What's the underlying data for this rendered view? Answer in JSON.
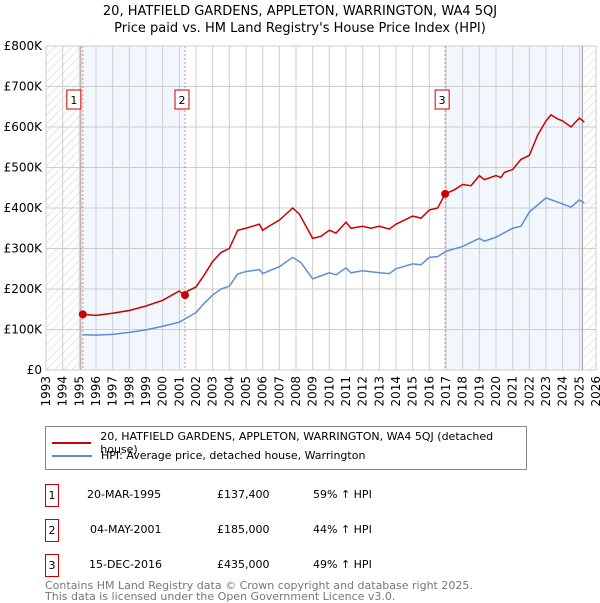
{
  "chart_data": {
    "type": "line",
    "title": "20, HATFIELD GARDENS, APPLETON, WARRINGTON, WA4 5QJ",
    "subtitle": "Price paid vs. HM Land Registry's House Price Index (HPI)",
    "xlim": [
      1993,
      2026
    ],
    "ylim": [
      0,
      800000
    ],
    "x_ticks": [
      "1993",
      "1994",
      "1995",
      "1996",
      "1997",
      "1998",
      "1999",
      "2000",
      "2001",
      "2002",
      "2003",
      "2004",
      "2005",
      "2006",
      "2007",
      "2008",
      "2009",
      "2010",
      "2011",
      "2012",
      "2013",
      "2014",
      "2015",
      "2016",
      "2017",
      "2018",
      "2019",
      "2020",
      "2021",
      "2022",
      "2023",
      "2024",
      "2025",
      "2026"
    ],
    "y_ticks": [
      {
        "v": 0,
        "label": "£0"
      },
      {
        "v": 100000,
        "label": "£100K"
      },
      {
        "v": 200000,
        "label": "£200K"
      },
      {
        "v": 300000,
        "label": "£300K"
      },
      {
        "v": 400000,
        "label": "£400K"
      },
      {
        "v": 500000,
        "label": "£500K"
      },
      {
        "v": 600000,
        "label": "£600K"
      },
      {
        "v": 700000,
        "label": "£700K"
      },
      {
        "v": 800000,
        "label": "£800K"
      }
    ],
    "grid": true,
    "series": [
      {
        "name": "20, HATFIELD GARDENS, APPLETON, WARRINGTON, WA4 5QJ (detached house)",
        "color": "#cc0000",
        "x": [
          1995.2,
          1996,
          1997,
          1998,
          1999,
          2000,
          2001,
          2001.3,
          2001.5,
          2002,
          2002.5,
          2003,
          2003.5,
          2004,
          2004.5,
          2005,
          2005.8,
          2006,
          2006.5,
          2007,
          2007.8,
          2008.2,
          2008.6,
          2009,
          2009.5,
          2010,
          2010.4,
          2011,
          2011.3,
          2012,
          2012.5,
          2013,
          2013.6,
          2014,
          2014.5,
          2015,
          2015.5,
          2016,
          2016.5,
          2016.95,
          2017.5,
          2018,
          2018.5,
          2019,
          2019.3,
          2020,
          2020.3,
          2020.5,
          2021,
          2021.5,
          2022,
          2022.5,
          2023,
          2023.3,
          2023.7,
          2024,
          2024.5,
          2025,
          2025.3
        ],
        "y": [
          137400,
          135000,
          140000,
          147000,
          158000,
          172000,
          195000,
          185000,
          195000,
          205000,
          235000,
          268000,
          290000,
          300000,
          345000,
          350000,
          360000,
          345000,
          358000,
          370000,
          400000,
          385000,
          355000,
          325000,
          330000,
          345000,
          338000,
          365000,
          350000,
          355000,
          350000,
          355000,
          348000,
          360000,
          370000,
          380000,
          375000,
          395000,
          400000,
          435000,
          445000,
          458000,
          455000,
          480000,
          470000,
          480000,
          475000,
          488000,
          495000,
          520000,
          530000,
          580000,
          615000,
          630000,
          620000,
          615000,
          600000,
          622000,
          612000
        ]
      },
      {
        "name": "HPI: Average price, detached house, Warrington",
        "color": "#5b8fd4",
        "x": [
          1995.2,
          1996,
          1997,
          1998,
          1999,
          2000,
          2001,
          2001.5,
          2002,
          2002.5,
          2003,
          2003.5,
          2004,
          2004.5,
          2005,
          2005.8,
          2006,
          2007,
          2007.8,
          2008.3,
          2009,
          2010,
          2010.4,
          2011,
          2011.3,
          2012,
          2013,
          2013.6,
          2014,
          2015,
          2015.5,
          2016,
          2016.5,
          2017,
          2018,
          2019,
          2019.3,
          2020,
          2021,
          2021.5,
          2022,
          2023,
          2024,
          2024.5,
          2025,
          2025.3
        ],
        "y": [
          87000,
          86000,
          88000,
          93000,
          99000,
          108000,
          118000,
          130000,
          142000,
          165000,
          185000,
          200000,
          207000,
          237000,
          243000,
          248000,
          238000,
          255000,
          278000,
          265000,
          225000,
          240000,
          235000,
          252000,
          240000,
          245000,
          240000,
          238000,
          250000,
          262000,
          260000,
          278000,
          280000,
          293000,
          305000,
          325000,
          318000,
          328000,
          350000,
          355000,
          390000,
          425000,
          410000,
          402000,
          420000,
          412000
        ]
      }
    ],
    "sales": [
      {
        "n": "1",
        "x": 1995.21,
        "price": 137400,
        "date": "20-MAR-1995",
        "price_label": "£137,400",
        "hpi": "59% ↑ HPI"
      },
      {
        "n": "2",
        "x": 2001.34,
        "price": 185000,
        "date": "04-MAY-2001",
        "price_label": "£185,000",
        "hpi": "44% ↑ HPI"
      },
      {
        "n": "3",
        "x": 2016.95,
        "price": 435000,
        "date": "15-DEC-2016",
        "price_label": "£435,000",
        "hpi": "49% ↑ HPI"
      }
    ],
    "data_end": 2025.3
  },
  "footer": [
    "Contains HM Land Registry data © Crown copyright and database right 2025.",
    "This data is licensed under the Open Government Licence v3.0."
  ]
}
